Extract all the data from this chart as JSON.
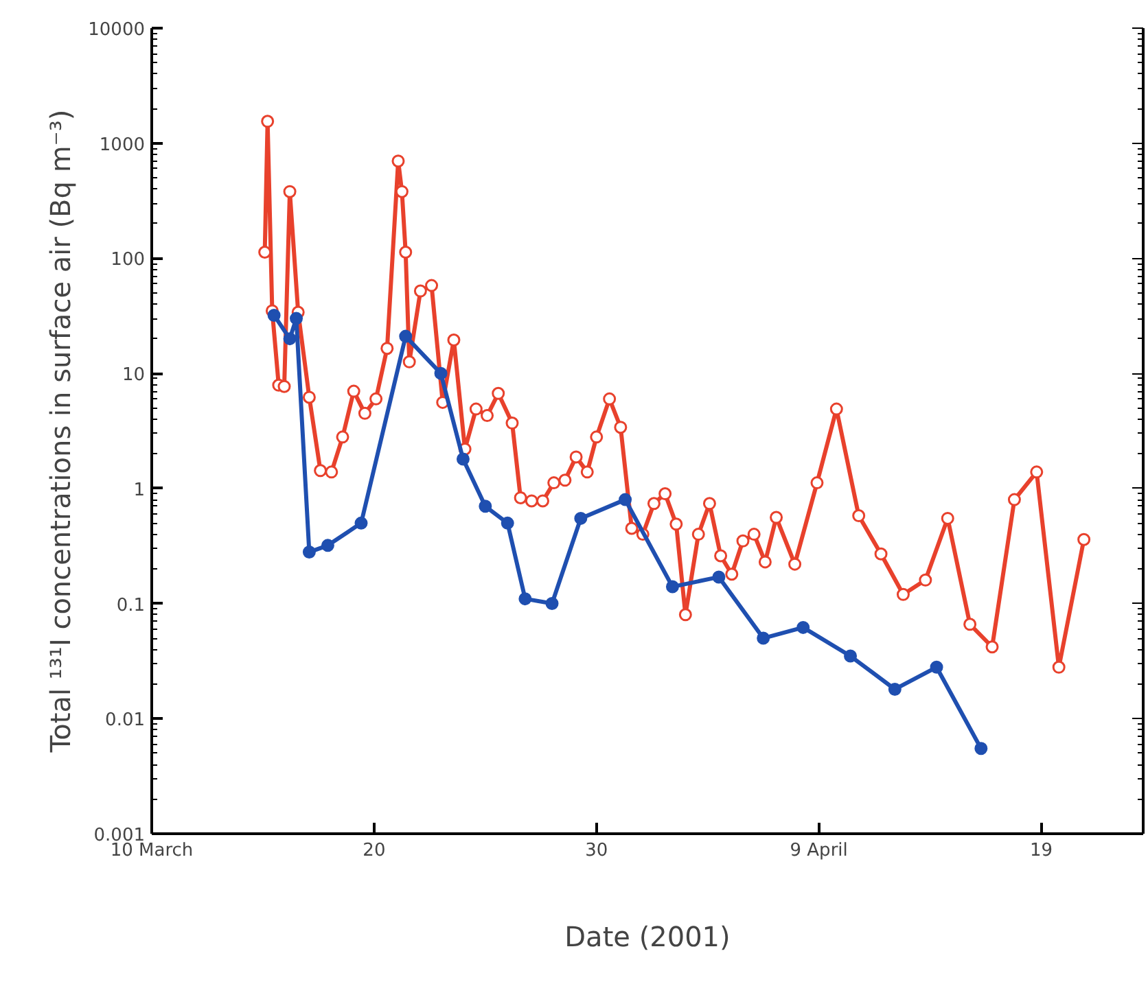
{
  "chart_data": {
    "type": "line",
    "xlabel": "Date (2001)",
    "ylabel": "Total ¹³¹I concentrations in surface air (Bq m⁻³)",
    "log": "y",
    "grid": false,
    "marker": "circle",
    "line_style": "solid",
    "xlim": [
      "2001-03-10",
      "2001-04-23T14:00"
    ],
    "xticks": [
      {
        "value": "2001-03-10",
        "label": "10 March"
      },
      {
        "value": "2001-03-20",
        "label": "20"
      },
      {
        "value": "2001-03-30",
        "label": "30"
      },
      {
        "value": "2001-04-09",
        "label": "9 April"
      },
      {
        "value": "2001-04-19",
        "label": "19"
      }
    ],
    "ylim": [
      0.001,
      10000
    ],
    "yticks": [
      0.001,
      0.01,
      0.1,
      1,
      10,
      100,
      1000,
      10000
    ],
    "series": [
      {
        "color": "#e8412c",
        "x": [
          "2001-03-15T02:00",
          "2001-03-15T05:00",
          "2001-03-15T10:00",
          "2001-03-15T17:00",
          "2001-03-15T23:00",
          "2001-03-16T05:00",
          "2001-03-16T14:00",
          "2001-03-17T02:00",
          "2001-03-17T14:00",
          "2001-03-18T02:00",
          "2001-03-18T14:00",
          "2001-03-19T02:00",
          "2001-03-19T14:00",
          "2001-03-20T02:00",
          "2001-03-20T14:00",
          "2001-03-21T02:00",
          "2001-03-21T06:00",
          "2001-03-21T10:00",
          "2001-03-21T14:00",
          "2001-03-22T02:00",
          "2001-03-22T14:00",
          "2001-03-23T02:00",
          "2001-03-23T14:00",
          "2001-03-24T02:00",
          "2001-03-24T14:00",
          "2001-03-25T02:00",
          "2001-03-25T14:00",
          "2001-03-26T05:00",
          "2001-03-26T14:00",
          "2001-03-27T02:00",
          "2001-03-27T14:00",
          "2001-03-28T02:00",
          "2001-03-28T14:00",
          "2001-03-29T02:00",
          "2001-03-29T14:00",
          "2001-03-30T00:00",
          "2001-03-30T14:00",
          "2001-03-31T02:00",
          "2001-03-31T14:00",
          "2001-04-01T02:00",
          "2001-04-01T14:00",
          "2001-04-02T02:00",
          "2001-04-02T14:00",
          "2001-04-03T00:00",
          "2001-04-03T14:00",
          "2001-04-04T02:00",
          "2001-04-04T14:00",
          "2001-04-05T02:00",
          "2001-04-05T14:00",
          "2001-04-06T02:00",
          "2001-04-06T14:00",
          "2001-04-07T02:00",
          "2001-04-07T22:00",
          "2001-04-08T22:00",
          "2001-04-09T19:00",
          "2001-04-10T19:00",
          "2001-04-11T19:00",
          "2001-04-12T19:00",
          "2001-04-13T19:00",
          "2001-04-14T19:00",
          "2001-04-15T19:00",
          "2001-04-16T19:00",
          "2001-04-17T19:00",
          "2001-04-18T19:00",
          "2001-04-19T19:00",
          "2001-04-20T22:00"
        ],
        "values": [
          113,
          1550,
          35,
          7.9,
          7.7,
          380,
          34,
          6.2,
          1.43,
          1.39,
          2.8,
          7,
          4.5,
          6,
          16.5,
          700,
          380,
          113,
          12.6,
          52,
          58,
          5.6,
          19.5,
          2.2,
          4.9,
          4.3,
          6.7,
          3.7,
          0.83,
          0.78,
          0.78,
          1.12,
          1.18,
          1.88,
          1.39,
          2.8,
          6,
          3.4,
          0.45,
          0.4,
          0.74,
          0.9,
          0.49,
          0.08,
          0.4,
          0.74,
          0.26,
          0.18,
          0.35,
          0.4,
          0.23,
          0.56,
          0.22,
          1.12,
          4.9,
          0.58,
          0.27,
          0.12,
          0.16,
          0.55,
          0.066,
          0.042,
          0.8,
          1.39,
          0.028,
          0.36
        ]
      },
      {
        "color": "#1f4fb0",
        "x": [
          "2001-03-15T12:00",
          "2001-03-16T05:00",
          "2001-03-16T12:00",
          "2001-03-17T02:00",
          "2001-03-17T22:00",
          "2001-03-19T10:00",
          "2001-03-21T10:00",
          "2001-03-23T00:00",
          "2001-03-24T00:00",
          "2001-03-25T00:00",
          "2001-03-26T00:00",
          "2001-03-26T19:00",
          "2001-03-28T00:00",
          "2001-03-29T07:00",
          "2001-03-31T07:00",
          "2001-04-02T10:00",
          "2001-04-04T12:00",
          "2001-04-06T12:00",
          "2001-04-08T07:00",
          "2001-04-10T10:00",
          "2001-04-12T10:00",
          "2001-04-14T07:00",
          "2001-04-16T07:00"
        ],
        "values": [
          32,
          20,
          30,
          0.28,
          0.32,
          0.5,
          21,
          10,
          1.8,
          0.7,
          0.5,
          0.11,
          0.1,
          0.55,
          0.8,
          0.14,
          0.17,
          0.05,
          0.062,
          0.035,
          0.018,
          0.028,
          0.0055
        ]
      }
    ]
  }
}
